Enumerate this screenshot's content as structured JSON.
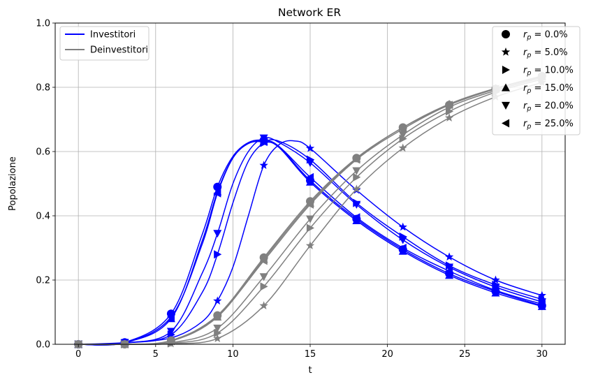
{
  "chart_data": {
    "type": "line",
    "title": "Network ER",
    "xlabel": "t",
    "ylabel": "Popolazione",
    "xlim": [
      -1.5,
      31.5
    ],
    "ylim": [
      0,
      1.0
    ],
    "x_ticks": [
      0,
      5,
      10,
      15,
      20,
      25,
      30
    ],
    "y_ticks": [
      0.0,
      0.2,
      0.4,
      0.6,
      0.8,
      1.0
    ],
    "grid": true,
    "legend_groups": [
      {
        "placement": "top-left",
        "entries": [
          {
            "label": "Investitori",
            "color": "#0000ff"
          },
          {
            "label": "Deinvestitori",
            "color": "#808080"
          }
        ]
      },
      {
        "placement": "top-right",
        "entries": [
          {
            "label": "0.0%",
            "marker": "circle"
          },
          {
            "label": "5.0%",
            "marker": "star"
          },
          {
            "label": "10.0%",
            "marker": "triangle-right"
          },
          {
            "label": "15.0%",
            "marker": "triangle-up"
          },
          {
            "label": "20.0%",
            "marker": "triangle-down"
          },
          {
            "label": "25.0%",
            "marker": "triangle-left"
          }
        ]
      }
    ],
    "legend_symbol": "r",
    "legend_subscript": "p",
    "marker_x": [
      0,
      3,
      6,
      9,
      12,
      15,
      18,
      21,
      24,
      27,
      30
    ],
    "series": [
      {
        "name": "Investitori",
        "rp": "0.0%",
        "marker": "circle",
        "color": "#0000ff",
        "points": [
          [
            0,
            0.0
          ],
          [
            3,
            0.006
          ],
          [
            6,
            0.095
          ],
          [
            8,
            0.34
          ],
          [
            9,
            0.49
          ],
          [
            10,
            0.585
          ],
          [
            11,
            0.628
          ],
          [
            12,
            0.635
          ],
          [
            13,
            0.615
          ],
          [
            15,
            0.51
          ],
          [
            18,
            0.39
          ],
          [
            21,
            0.295
          ],
          [
            24,
            0.22
          ],
          [
            27,
            0.165
          ],
          [
            30,
            0.12
          ]
        ]
      },
      {
        "name": "Investitori",
        "rp": "5.0%",
        "marker": "star",
        "color": "#0000ff",
        "points": [
          [
            0,
            0.0
          ],
          [
            3,
            0.005
          ],
          [
            6,
            0.02
          ],
          [
            8,
            0.07
          ],
          [
            9,
            0.135
          ],
          [
            10,
            0.24
          ],
          [
            11,
            0.4
          ],
          [
            12,
            0.557
          ],
          [
            13,
            0.622
          ],
          [
            14,
            0.633
          ],
          [
            15,
            0.61
          ],
          [
            18,
            0.48
          ],
          [
            21,
            0.365
          ],
          [
            24,
            0.272
          ],
          [
            27,
            0.2
          ],
          [
            30,
            0.152
          ]
        ]
      },
      {
        "name": "Investitori",
        "rp": "10.0%",
        "marker": "triangle-right",
        "color": "#0000ff",
        "points": [
          [
            0,
            0.0
          ],
          [
            3,
            0.004
          ],
          [
            6,
            0.03
          ],
          [
            8,
            0.16
          ],
          [
            9,
            0.28
          ],
          [
            10,
            0.44
          ],
          [
            11,
            0.57
          ],
          [
            12,
            0.627
          ],
          [
            13,
            0.632
          ],
          [
            15,
            0.575
          ],
          [
            18,
            0.44
          ],
          [
            21,
            0.335
          ],
          [
            24,
            0.245
          ],
          [
            27,
            0.185
          ],
          [
            30,
            0.14
          ]
        ]
      },
      {
        "name": "Investitori",
        "rp": "15.0%",
        "marker": "triangle-up",
        "color": "#0000ff",
        "points": [
          [
            0,
            0.0
          ],
          [
            3,
            0.005
          ],
          [
            6,
            0.08
          ],
          [
            8,
            0.32
          ],
          [
            9,
            0.475
          ],
          [
            10,
            0.58
          ],
          [
            11,
            0.625
          ],
          [
            12,
            0.632
          ],
          [
            13,
            0.612
          ],
          [
            15,
            0.505
          ],
          [
            18,
            0.385
          ],
          [
            21,
            0.29
          ],
          [
            24,
            0.215
          ],
          [
            27,
            0.16
          ],
          [
            30,
            0.118
          ]
        ]
      },
      {
        "name": "Investitori",
        "rp": "20.0%",
        "marker": "triangle-down",
        "color": "#0000ff",
        "points": [
          [
            0,
            0.0
          ],
          [
            3,
            0.004
          ],
          [
            6,
            0.04
          ],
          [
            8,
            0.22
          ],
          [
            9,
            0.345
          ],
          [
            10,
            0.5
          ],
          [
            11,
            0.6
          ],
          [
            12,
            0.642
          ],
          [
            13,
            0.628
          ],
          [
            15,
            0.565
          ],
          [
            18,
            0.435
          ],
          [
            21,
            0.325
          ],
          [
            24,
            0.24
          ],
          [
            27,
            0.178
          ],
          [
            30,
            0.132
          ]
        ]
      },
      {
        "name": "Investitori",
        "rp": "25.0%",
        "marker": "triangle-left",
        "color": "#0000ff",
        "points": [
          [
            0,
            0.0
          ],
          [
            3,
            0.005
          ],
          [
            6,
            0.085
          ],
          [
            8,
            0.31
          ],
          [
            9,
            0.47
          ],
          [
            10,
            0.58
          ],
          [
            11,
            0.625
          ],
          [
            12,
            0.63
          ],
          [
            13,
            0.615
          ],
          [
            15,
            0.52
          ],
          [
            18,
            0.395
          ],
          [
            21,
            0.3
          ],
          [
            24,
            0.228
          ],
          [
            27,
            0.168
          ],
          [
            30,
            0.125
          ]
        ]
      },
      {
        "name": "Deinvestitori",
        "rp": "0.0%",
        "marker": "circle",
        "color": "#808080",
        "points": [
          [
            0,
            0.0
          ],
          [
            3,
            0.0
          ],
          [
            6,
            0.012
          ],
          [
            9,
            0.09
          ],
          [
            12,
            0.27
          ],
          [
            15,
            0.445
          ],
          [
            18,
            0.58
          ],
          [
            21,
            0.675
          ],
          [
            24,
            0.745
          ],
          [
            27,
            0.795
          ],
          [
            30,
            0.835
          ]
        ]
      },
      {
        "name": "Deinvestitori",
        "rp": "5.0%",
        "marker": "star",
        "color": "#808080",
        "points": [
          [
            0,
            0.0
          ],
          [
            3,
            0.0
          ],
          [
            6,
            0.002
          ],
          [
            9,
            0.018
          ],
          [
            12,
            0.12
          ],
          [
            15,
            0.307
          ],
          [
            18,
            0.483
          ],
          [
            21,
            0.611
          ],
          [
            24,
            0.705
          ],
          [
            27,
            0.77
          ],
          [
            30,
            0.815
          ]
        ]
      },
      {
        "name": "Deinvestitori",
        "rp": "10.0%",
        "marker": "triangle-right",
        "color": "#808080",
        "points": [
          [
            0,
            0.0
          ],
          [
            3,
            0.0
          ],
          [
            6,
            0.003
          ],
          [
            9,
            0.035
          ],
          [
            12,
            0.18
          ],
          [
            15,
            0.362
          ],
          [
            18,
            0.52
          ],
          [
            21,
            0.64
          ],
          [
            24,
            0.725
          ],
          [
            27,
            0.785
          ],
          [
            30,
            0.825
          ]
        ]
      },
      {
        "name": "Deinvestitori",
        "rp": "15.0%",
        "marker": "triangle-up",
        "color": "#808080",
        "points": [
          [
            0,
            0.0
          ],
          [
            3,
            0.0
          ],
          [
            6,
            0.01
          ],
          [
            9,
            0.085
          ],
          [
            12,
            0.265
          ],
          [
            15,
            0.44
          ],
          [
            18,
            0.578
          ],
          [
            21,
            0.675
          ],
          [
            24,
            0.748
          ],
          [
            27,
            0.797
          ],
          [
            30,
            0.835
          ]
        ]
      },
      {
        "name": "Deinvestitori",
        "rp": "20.0%",
        "marker": "triangle-down",
        "color": "#808080",
        "points": [
          [
            0,
            0.0
          ],
          [
            3,
            0.0
          ],
          [
            6,
            0.005
          ],
          [
            9,
            0.05
          ],
          [
            12,
            0.21
          ],
          [
            15,
            0.39
          ],
          [
            18,
            0.54
          ],
          [
            21,
            0.652
          ],
          [
            24,
            0.738
          ],
          [
            27,
            0.79
          ],
          [
            30,
            0.83
          ]
        ]
      },
      {
        "name": "Deinvestitori",
        "rp": "25.0%",
        "marker": "triangle-left",
        "color": "#808080",
        "points": [
          [
            0,
            0.0
          ],
          [
            3,
            0.0
          ],
          [
            6,
            0.01
          ],
          [
            9,
            0.088
          ],
          [
            12,
            0.26
          ],
          [
            15,
            0.435
          ],
          [
            18,
            0.575
          ],
          [
            21,
            0.67
          ],
          [
            24,
            0.745
          ],
          [
            27,
            0.795
          ],
          [
            30,
            0.833
          ]
        ]
      }
    ]
  }
}
